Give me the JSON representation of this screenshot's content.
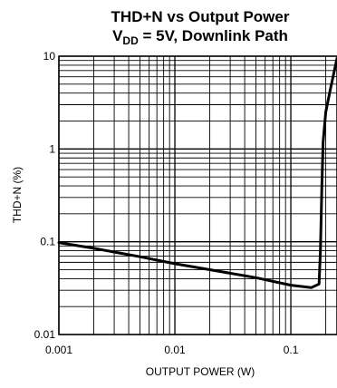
{
  "chart_data": {
    "type": "line",
    "title_line1": "THD+N vs Output Power",
    "title_line2_prefix": "V",
    "title_line2_sub": "DD",
    "title_line2_suffix": " = 5V, Downlink Path",
    "xlabel": "OUTPUT POWER (W)",
    "ylabel": "THD+N (%)",
    "x_scale": "log",
    "y_scale": "log",
    "xlim": [
      0.001,
      0.25
    ],
    "ylim": [
      0.01,
      10
    ],
    "x_ticks": [
      {
        "value": 0.001,
        "label": "0.001"
      },
      {
        "value": 0.01,
        "label": "0.01"
      },
      {
        "value": 0.1,
        "label": "0.1"
      }
    ],
    "y_ticks": [
      {
        "value": 10,
        "label": "10"
      },
      {
        "value": 1,
        "label": "1"
      },
      {
        "value": 0.1,
        "label": "0.1"
      },
      {
        "value": 0.01,
        "label": "0.01"
      }
    ],
    "grid": true,
    "series": [
      {
        "color": "#000000",
        "x": [
          0.001,
          0.002,
          0.005,
          0.01,
          0.02,
          0.05,
          0.1,
          0.15,
          0.175,
          0.18,
          0.185,
          0.19,
          0.2,
          0.22,
          0.25
        ],
        "y": [
          0.098,
          0.085,
          0.069,
          0.058,
          0.05,
          0.041,
          0.034,
          0.032,
          0.035,
          0.08,
          0.4,
          1.2,
          2.5,
          4.5,
          9.5
        ]
      }
    ]
  }
}
